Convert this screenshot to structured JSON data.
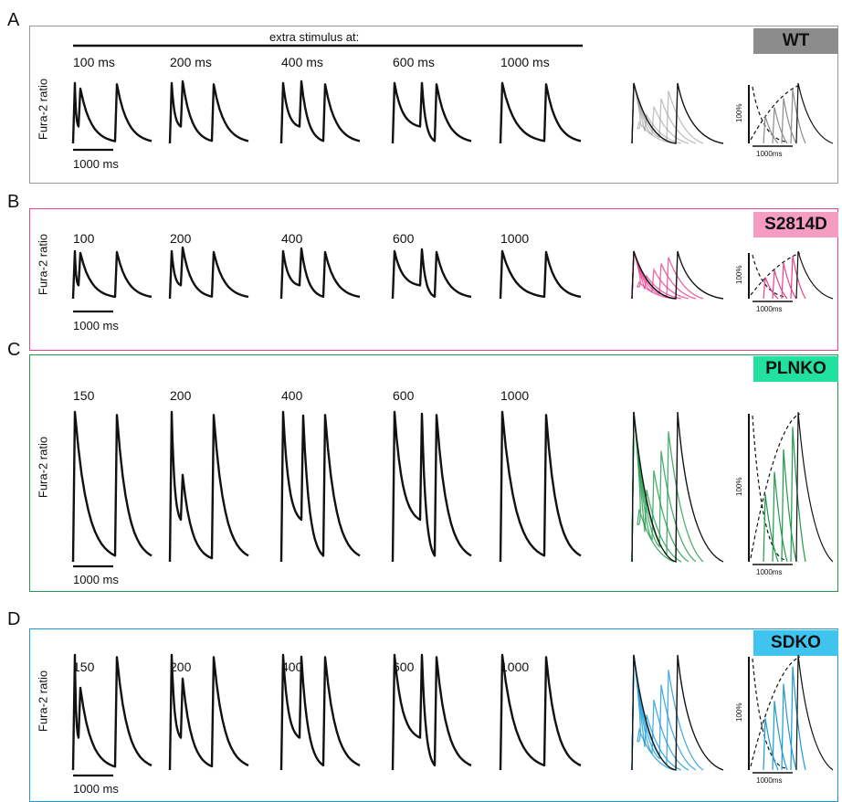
{
  "stim_header": "extra stimulus at:",
  "y_label": "Fura-2 ratio",
  "scale_label": "1000 ms",
  "mini_scale_label": "1000ms",
  "percent_label": "100%",
  "panels": [
    {
      "letter": "A",
      "genotype": "WT",
      "color": "#8c8c8c",
      "badge_bg": "#8c8c8c",
      "labels": [
        "100 ms",
        "200 ms",
        "400 ms",
        "600 ms",
        "1000 ms"
      ]
    },
    {
      "letter": "B",
      "genotype": "S2814D",
      "color": "#e8418f",
      "badge_bg": "#f59cc2",
      "labels": [
        "100",
        "200",
        "400",
        "600",
        "1000"
      ]
    },
    {
      "letter": "C",
      "genotype": "PLNKO",
      "color": "#1f9a4a",
      "badge_bg": "#21e0a0",
      "labels": [
        "150",
        "200",
        "400",
        "600",
        "1000"
      ]
    },
    {
      "letter": "D",
      "genotype": "SDKO",
      "color": "#1a9ad6",
      "badge_bg": "#3fc4f0",
      "labels": [
        "150",
        "200",
        "400",
        "600",
        "1000"
      ]
    }
  ],
  "chart_data": {
    "type": "line",
    "xlabel": "",
    "ylabel": "Fura-2 ratio",
    "series": [
      {
        "name": "WT",
        "extra_stimulus_ms": [
          100,
          200,
          400,
          600,
          1000
        ]
      },
      {
        "name": "S2814D",
        "extra_stimulus_ms": [
          100,
          200,
          400,
          600,
          1000
        ]
      },
      {
        "name": "PLNKO",
        "extra_stimulus_ms": [
          150,
          200,
          400,
          600,
          1000
        ]
      },
      {
        "name": "SDKO",
        "extra_stimulus_ms": [
          150,
          200,
          400,
          600,
          1000
        ]
      }
    ]
  }
}
